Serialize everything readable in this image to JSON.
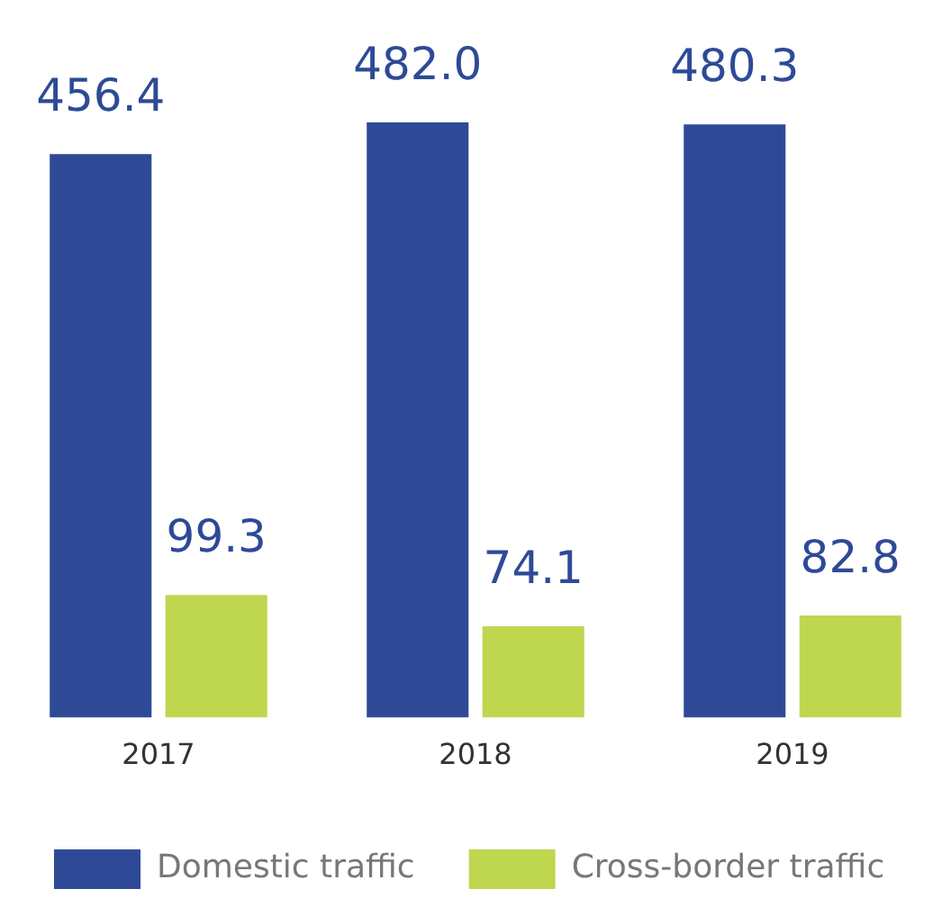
{
  "chart_data": {
    "type": "bar",
    "categories": [
      "2017",
      "2018",
      "2019"
    ],
    "series": [
      {
        "name": "Domestic traffic",
        "color": "#2e4a97",
        "values": [
          456.4,
          482.0,
          480.3
        ],
        "value_labels": [
          "456.4",
          "482.0",
          "480.3"
        ]
      },
      {
        "name": "Cross-border traffic",
        "color": "#bed74f",
        "values": [
          99.3,
          74.1,
          82.8
        ],
        "value_labels": [
          "99.3",
          "74.1",
          "82.8"
        ]
      }
    ],
    "data_labels": true,
    "legend": "bottom",
    "grid": false,
    "tick_labels": "x"
  }
}
